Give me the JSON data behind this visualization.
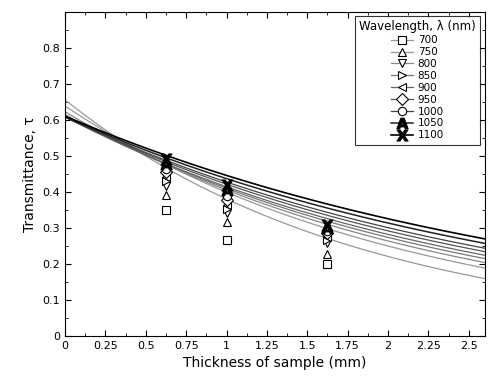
{
  "title": "Wavelength, λ (nm)",
  "xlabel": "Thickness of sample (mm)",
  "ylabel": "Transmittance, τ",
  "xlim": [
    0,
    2.6
  ],
  "ylim": [
    0,
    0.9
  ],
  "xticks": [
    0,
    0.25,
    0.5,
    0.75,
    1.0,
    1.25,
    1.5,
    1.75,
    2.0,
    2.25,
    2.5
  ],
  "yticks": [
    0,
    0.1,
    0.2,
    0.3,
    0.4,
    0.5,
    0.6,
    0.7,
    0.8
  ],
  "xtick_labels": [
    "0",
    "0.25",
    "0.5",
    "0.75",
    "1",
    "1.25",
    "1.5",
    "1.75",
    "2",
    "2.25",
    "2.5"
  ],
  "ytick_labels": [
    "0",
    "0.1",
    "0.2",
    "0.3",
    "0.4",
    "0.5",
    "0.6",
    "0.7",
    "0.8"
  ],
  "series": [
    {
      "label": "700",
      "marker": "s",
      "markersize": 6,
      "tau0": 0.655,
      "k": 0.545,
      "data_x": [
        0.625,
        1.0,
        1.625
      ],
      "data_y": [
        0.35,
        0.265,
        0.2
      ],
      "color": "#999999",
      "linewidth": 0.9,
      "markerfacecolor": "white"
    },
    {
      "label": "750",
      "marker": "^",
      "markersize": 6,
      "tau0": 0.638,
      "k": 0.47,
      "data_x": [
        0.625,
        1.0,
        1.625
      ],
      "data_y": [
        0.39,
        0.315,
        0.228
      ],
      "color": "#999999",
      "linewidth": 0.9,
      "markerfacecolor": "white"
    },
    {
      "label": "800",
      "marker": "v",
      "markersize": 6,
      "tau0": 0.622,
      "k": 0.43,
      "data_x": [
        0.625,
        1.0,
        1.625
      ],
      "data_y": [
        0.415,
        0.34,
        0.258
      ],
      "color": "#888888",
      "linewidth": 0.9,
      "markerfacecolor": "white"
    },
    {
      "label": "850",
      "marker": ">",
      "markersize": 6,
      "tau0": 0.614,
      "k": 0.405,
      "data_x": [
        0.625,
        1.0,
        1.625
      ],
      "data_y": [
        0.43,
        0.352,
        0.265
      ],
      "color": "#777777",
      "linewidth": 0.9,
      "markerfacecolor": "white"
    },
    {
      "label": "900",
      "marker": "<",
      "markersize": 6,
      "tau0": 0.608,
      "k": 0.385,
      "data_x": [
        0.625,
        1.0,
        1.625
      ],
      "data_y": [
        0.44,
        0.363,
        0.275
      ],
      "color": "#666666",
      "linewidth": 0.9,
      "markerfacecolor": "white"
    },
    {
      "label": "950",
      "marker": "D",
      "markersize": 6,
      "tau0": 0.608,
      "k": 0.368,
      "data_x": [
        0.625,
        1.0,
        1.625
      ],
      "data_y": [
        0.455,
        0.378,
        0.285
      ],
      "color": "#555555",
      "linewidth": 0.9,
      "markerfacecolor": "white"
    },
    {
      "label": "1000",
      "marker": "o",
      "markersize": 6,
      "tau0": 0.607,
      "k": 0.352,
      "data_x": [
        0.625,
        1.0,
        1.625
      ],
      "data_y": [
        0.462,
        0.388,
        0.29
      ],
      "color": "#444444",
      "linewidth": 0.9,
      "markerfacecolor": "white"
    },
    {
      "label": "1050",
      "marker": "$\\mathbf{A}$",
      "markersize": 8,
      "tau0": 0.608,
      "k": 0.332,
      "data_x": [
        0.625,
        1.0,
        1.625
      ],
      "data_y": [
        0.477,
        0.405,
        0.3
      ],
      "color": "#222222",
      "linewidth": 1.1,
      "markerfacecolor": "black"
    },
    {
      "label": "1100",
      "marker": "$\\mathbf{X}$",
      "markersize": 8,
      "tau0": 0.61,
      "k": 0.315,
      "data_x": [
        0.625,
        1.0,
        1.625
      ],
      "data_y": [
        0.49,
        0.418,
        0.308
      ],
      "color": "#000000",
      "linewidth": 1.2,
      "markerfacecolor": "black"
    }
  ]
}
